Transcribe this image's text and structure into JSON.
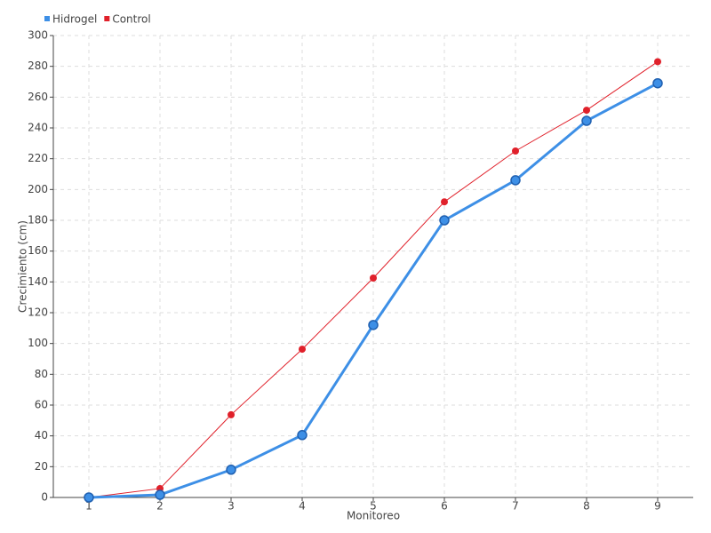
{
  "chart_data": {
    "type": "line",
    "x_label": "Monitoreo",
    "y_label": "Crecimiento (cm)",
    "x": [
      1,
      2,
      3,
      4,
      5,
      6,
      7,
      8,
      9
    ],
    "series": [
      {
        "name": "Hidrogel",
        "color": "#3d8fe6",
        "values": [
          0,
          1.7,
          18,
          40.5,
          112,
          180,
          206,
          244.6,
          269
        ]
      },
      {
        "name": "Control",
        "color": "#e0202a",
        "values": [
          0,
          5.8,
          53.7,
          96.3,
          142.5,
          192,
          225,
          251.5,
          283
        ]
      }
    ],
    "xlim": [
      0.5,
      9.5
    ],
    "xticks": [
      1,
      2,
      3,
      4,
      5,
      6,
      7,
      8,
      9
    ],
    "ylim": [
      0,
      300
    ],
    "yticks": [
      0,
      20,
      40,
      60,
      80,
      100,
      120,
      140,
      160,
      180,
      200,
      220,
      240,
      260,
      280,
      300
    ],
    "grid": true,
    "legend_position": "top-left"
  }
}
